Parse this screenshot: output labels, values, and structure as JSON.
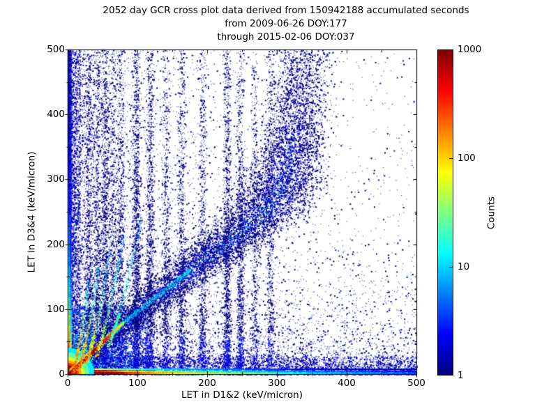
{
  "chart_data": {
    "type": "heatmap",
    "title_line1": "2052 day GCR cross plot data derived from 150942188 accumulated seconds",
    "title_line2": "from 2009-06-26 DOY:177",
    "title_line3": "through 2015-02-06 DOY:037",
    "xlabel": "LET in D1&2 (keV/micron)",
    "ylabel": "LET in D3&4 (keV/micron)",
    "xlim": [
      0,
      500
    ],
    "ylim": [
      0,
      500
    ],
    "xticks": [
      0,
      100,
      200,
      300,
      400,
      500
    ],
    "yticks": [
      0,
      100,
      200,
      300,
      400,
      500
    ],
    "minor_tick_step": 50,
    "grid": false,
    "colorbar": {
      "label": "Counts",
      "scale": "log",
      "min": 1,
      "max": 1000,
      "ticks": [
        1,
        10,
        100,
        1000
      ],
      "colormap": "jet"
    },
    "features": {
      "background_scatter": {
        "attempts": 42000,
        "left_amp": 0.55,
        "left_scale": 60,
        "bottom_amp": 0.85,
        "bottom_scale": 36,
        "bottom2_amp": 0.26,
        "bottom2_scale": 82,
        "cloud_amp": 0.34,
        "cloud_scale": 255,
        "floor": 0.018
      },
      "left_column_extra": {
        "points": 3200,
        "width": 18
      },
      "bottom_strip_extra": {
        "points": 5200,
        "height": 28
      },
      "origin_cloud": {
        "points": 9000,
        "x_extent": 115,
        "y_extent": 105,
        "falloff": 62,
        "max_count": 14,
        "green_speckle": 500
      },
      "band": {
        "points": 16000,
        "centerline": [
          [
            0,
            0
          ],
          [
            80,
            76
          ],
          [
            160,
            146
          ],
          [
            235,
            210
          ],
          [
            280,
            245
          ],
          [
            308,
            295
          ],
          [
            325,
            370
          ],
          [
            338,
            500
          ]
        ],
        "sigma": [
          10,
          14,
          20,
          26,
          28,
          26,
          22,
          20
        ],
        "peak_y": 215,
        "peak_count": 7
      },
      "stripes": [
        [
          30,
          1000
        ],
        [
          42,
          800
        ],
        [
          53,
          1400
        ],
        [
          64,
          700
        ],
        [
          75,
          900
        ],
        [
          98,
          1600
        ],
        [
          118,
          1200
        ],
        [
          140,
          700
        ],
        [
          163,
          900
        ],
        [
          193,
          800
        ],
        [
          228,
          1300
        ],
        [
          247,
          1100
        ],
        [
          268,
          500
        ],
        [
          290,
          600
        ]
      ],
      "stripe_sigma": 2.8,
      "arcs": [
        {
          "p0": [
            8,
            4
          ],
          "p1": [
            20,
            60
          ],
          "p2": [
            30,
            145
          ],
          "c0": 300,
          "c1": 8
        },
        {
          "p0": [
            16,
            10
          ],
          "p1": [
            32,
            70
          ],
          "p2": [
            44,
            165
          ],
          "c0": 220,
          "c1": 8
        },
        {
          "p0": [
            26,
            18
          ],
          "p1": [
            46,
            85
          ],
          "p2": [
            60,
            190
          ],
          "c0": 150,
          "c1": 6
        },
        {
          "p0": [
            40,
            28
          ],
          "p1": [
            62,
            100
          ],
          "p2": [
            80,
            215
          ],
          "c0": 90,
          "c1": 5
        },
        {
          "p0": [
            58,
            44
          ],
          "p1": [
            85,
            125
          ],
          "p2": [
            105,
            245
          ],
          "c0": 35,
          "c1": 4
        }
      ],
      "diagonal_line": {
        "x_end": 80,
        "counts": [
          [
            0,
            900
          ],
          [
            45,
            800
          ],
          [
            58,
            300
          ],
          [
            68,
            130
          ],
          [
            80,
            55
          ]
        ],
        "halo_width": 5,
        "halo_ratio": 0.12,
        "continuation_end": [
          175,
          160
        ],
        "continuation_count": 10,
        "fan_points": 600
      },
      "bottom_edge_rows": [
        {
          "y": 1.3,
          "h": 3,
          "gradient": [
            [
              0,
              900
            ],
            [
              70,
              750
            ],
            [
              85,
              330
            ],
            [
              110,
              150
            ],
            [
              150,
              80
            ],
            [
              210,
              42
            ],
            [
              280,
              25
            ],
            [
              330,
              12
            ],
            [
              500,
              4
            ]
          ]
        },
        {
          "y": 4.5,
          "h": 2,
          "gradient": [
            [
              0,
              600
            ],
            [
              55,
              280
            ],
            [
              80,
              120
            ],
            [
              110,
              60
            ],
            [
              160,
              25
            ],
            [
              240,
              12
            ],
            [
              350,
              5
            ],
            [
              500,
              2
            ]
          ]
        },
        {
          "y": 7.5,
          "h": 2,
          "gradient": [
            [
              0,
              220
            ],
            [
              40,
              80
            ],
            [
              80,
              30
            ],
            [
              130,
              12
            ],
            [
              200,
              6
            ],
            [
              350,
              2
            ],
            [
              500,
              1.4
            ]
          ]
        }
      ],
      "left_edge_cols": [
        {
          "x": 1.3,
          "w": 3,
          "gradient": [
            [
              0,
              900
            ],
            [
              15,
              700
            ],
            [
              28,
              350
            ],
            [
              42,
              180
            ],
            [
              58,
              100
            ],
            [
              75,
              55
            ],
            [
              100,
              30
            ],
            [
              130,
              15
            ],
            [
              170,
              8
            ],
            [
              230,
              4
            ],
            [
              320,
              2
            ],
            [
              500,
              1.4
            ]
          ]
        },
        {
          "x": 4.5,
          "w": 2,
          "gradient": [
            [
              0,
              500
            ],
            [
              18,
              200
            ],
            [
              35,
              90
            ],
            [
              55,
              45
            ],
            [
              80,
              20
            ],
            [
              110,
              10
            ],
            [
              150,
              5
            ],
            [
              220,
              2.5
            ],
            [
              500,
              1.2
            ]
          ]
        }
      ],
      "origin_blob": [
        [
          38,
          12
        ],
        [
          31,
          25
        ],
        [
          25,
          60
        ],
        [
          20,
          130
        ],
        [
          16,
          300
        ],
        [
          13,
          700
        ],
        [
          9,
          1000
        ]
      ]
    }
  }
}
